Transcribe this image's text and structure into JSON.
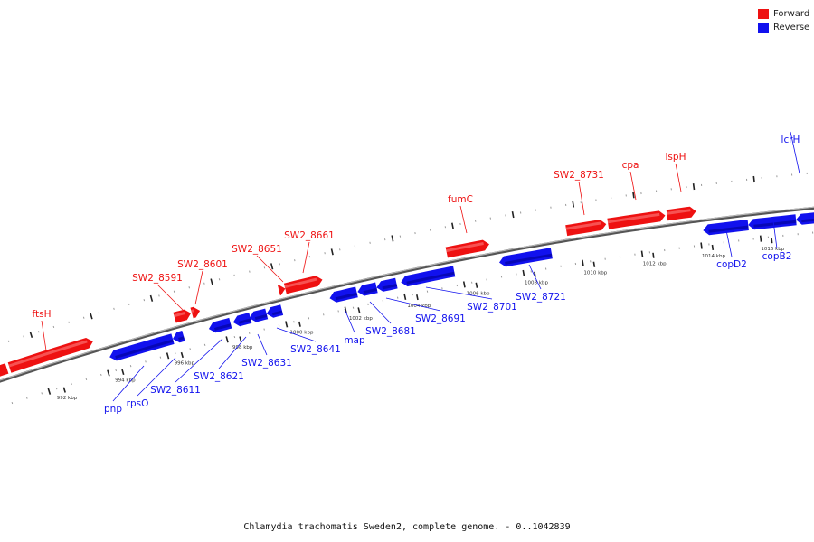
{
  "caption": "Chlamydia trachomatis Sweden2, complete genome. - 0..1042839",
  "legend": [
    {
      "label": "Forward",
      "color": "#ee1111"
    },
    {
      "label": "Reverse",
      "color": "#1111ee"
    }
  ],
  "colors": {
    "forward": "#ee1111",
    "reverse": "#1111ee",
    "backbone": "#777777"
  },
  "ticks": [
    "992 kbp",
    "994 kbp",
    "996 kbp",
    "998 kbp",
    "1000 kbp",
    "1002 kbp",
    "1004 kbp",
    "1006 kbp",
    "1008 kbp",
    "1010 kbp",
    "1012 kbp",
    "1014 kbp",
    "1016 kbp"
  ],
  "genes": [
    {
      "label": "ftsH",
      "strand": "forward"
    },
    {
      "label": "SW2_8591",
      "strand": "forward"
    },
    {
      "label": "SW2_8601",
      "strand": "forward"
    },
    {
      "label": "SW2_8651",
      "strand": "forward"
    },
    {
      "label": "SW2_8661",
      "strand": "forward"
    },
    {
      "label": "fumC",
      "strand": "forward"
    },
    {
      "label": "SW2_8731",
      "strand": "forward"
    },
    {
      "label": "cpa",
      "strand": "forward"
    },
    {
      "label": "ispH",
      "strand": "forward"
    },
    {
      "label": "lcrH",
      "strand": "reverse"
    },
    {
      "label": "pnp",
      "strand": "reverse"
    },
    {
      "label": "rpsO",
      "strand": "reverse"
    },
    {
      "label": "SW2_8611",
      "strand": "reverse"
    },
    {
      "label": "SW2_8621",
      "strand": "reverse"
    },
    {
      "label": "SW2_8631",
      "strand": "reverse"
    },
    {
      "label": "SW2_8641",
      "strand": "reverse"
    },
    {
      "label": "map",
      "strand": "reverse"
    },
    {
      "label": "SW2_8681",
      "strand": "reverse"
    },
    {
      "label": "SW2_8691",
      "strand": "reverse"
    },
    {
      "label": "SW2_8701",
      "strand": "reverse"
    },
    {
      "label": "SW2_8721",
      "strand": "reverse"
    },
    {
      "label": "copD2",
      "strand": "reverse"
    },
    {
      "label": "copB2",
      "strand": "reverse"
    }
  ]
}
